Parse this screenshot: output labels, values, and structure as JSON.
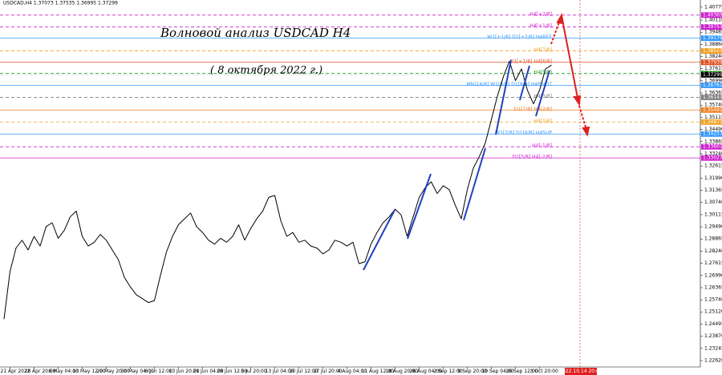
{
  "chart_data": {
    "type": "line",
    "title": "Волновой анализ USDCAD H4",
    "subtitle": "( 8 октября 2022 г.)",
    "symbol_info": "USDCAD,H4  1.37073 1.37535 1.36995 1.37299",
    "forecast_date": "2022.10.14 20:00",
    "last_price": 1.37299,
    "color": "#000000",
    "ylim": [
      1.2229,
      1.4114
    ],
    "yticks": [
      1.40775,
      {
        "value": 1.4011,
        "label": "1.40110"
      },
      1.39485,
      {
        "value": 1.3886,
        "label": "1.38860"
      },
      {
        "value": 1.3824,
        "label": "1.38240"
      },
      1.37615,
      {
        "value": 1.3699,
        "label": "1.36990"
      },
      1.36365,
      {
        "value": 1.3574,
        "label": "1.35740"
      },
      1.35115,
      {
        "value": 1.3449,
        "label": "1.34490"
      },
      1.33865,
      {
        "value": 1.3324,
        "label": "1.33240"
      },
      1.32615,
      {
        "value": 1.3199,
        "label": "1.31990"
      },
      1.31365,
      {
        "value": 1.3074,
        "label": "1.30740"
      },
      1.30115,
      {
        "value": 1.2949,
        "label": "1.29490"
      },
      1.28865,
      {
        "value": 1.2824,
        "label": "1.28240"
      },
      1.27615,
      {
        "value": 1.2699,
        "label": "1.26990"
      },
      1.26365,
      {
        "value": 1.2574,
        "label": "1.25740"
      },
      {
        "value": 1.2512,
        "label": "1.25120"
      },
      1.24495,
      {
        "value": 1.2387,
        "label": "1.23870"
      },
      1.23245,
      {
        "value": 1.2262,
        "label": "1.22620"
      }
    ],
    "categories": [
      null,
      "21 Apr 2022",
      null,
      null,
      null,
      "28 Apr 20:00",
      null,
      null,
      null,
      "6 May 04:00",
      null,
      null,
      null,
      "13 May 12:00",
      null,
      null,
      null,
      "20 May 20:00",
      null,
      null,
      null,
      "30 May 04:00",
      null,
      null,
      null,
      "6 Jun 12:00",
      null,
      null,
      null,
      "13 Jun 20:00",
      null,
      null,
      null,
      "21 Jun 04:00",
      null,
      null,
      null,
      "28 Jun 12:00",
      null,
      null,
      null,
      "5 Jul 20:00",
      null,
      null,
      null,
      "13 Jul 04:00",
      null,
      null,
      null,
      "20 Jul 12:00",
      null,
      null,
      null,
      "27 Jul 20:00",
      null,
      null,
      null,
      "4 Aug 04:00",
      null,
      null,
      null,
      "11 Aug 12:00",
      null,
      null,
      null,
      "18 Aug 20:00",
      null,
      null,
      null,
      "26 Aug 04:00",
      null,
      null,
      null,
      "2 Sep 12:00",
      null,
      null,
      null,
      "9 Sep 20:00",
      null,
      null,
      null,
      "19 Sep 04:00",
      null,
      null,
      null,
      "26 Sep 12:00",
      null,
      null,
      null,
      "3 Oct 20:00",
      null,
      null
    ],
    "values": [
      1.2475,
      1.272,
      1.284,
      1.288,
      1.283,
      1.29,
      1.285,
      1.295,
      1.297,
      1.289,
      1.293,
      1.3,
      1.303,
      1.29,
      1.285,
      1.287,
      1.291,
      1.288,
      1.283,
      1.278,
      1.269,
      1.264,
      1.26,
      1.258,
      1.256,
      1.257,
      1.27,
      1.282,
      1.29,
      1.296,
      1.299,
      1.302,
      1.295,
      1.292,
      1.288,
      1.286,
      1.289,
      1.287,
      1.29,
      1.296,
      1.288,
      1.294,
      1.299,
      1.303,
      1.31,
      1.311,
      1.298,
      1.29,
      1.292,
      1.287,
      1.288,
      1.285,
      1.284,
      1.281,
      1.283,
      1.288,
      1.287,
      1.285,
      1.287,
      1.276,
      1.277,
      1.286,
      1.292,
      1.297,
      1.3,
      1.304,
      1.301,
      1.29,
      1.3,
      1.31,
      1.315,
      1.318,
      1.312,
      1.316,
      1.314,
      1.306,
      1.299,
      1.314,
      1.325,
      1.331,
      1.338,
      1.35,
      1.362,
      1.372,
      1.38,
      1.37,
      1.376,
      1.365,
      1.358,
      1.365,
      1.376,
      1.378
    ],
    "levels": [
      {
        "label": "H4[+2/8]",
        "value": 1.40365,
        "color": "#d020d0",
        "dashed": true
      },
      {
        "label": "H4[+1/8]",
        "value": 1.39753,
        "color": "#d020d0",
        "dashed": true
      },
      {
        "label": "W1[+1/8] D1[+2/8] H4REE",
        "value": 1.39179,
        "color": "#3399ff",
        "dashed": false
      },
      {
        "label": "H4[7/8]",
        "value": 1.38523,
        "color": "#f0a020",
        "dashed": true
      },
      {
        "label": "D1[+1/8] H4[6/8]",
        "value": 1.37939,
        "color": "#e05020",
        "dashed": false
      },
      {
        "label": "H4[5/8]",
        "value": 1.37367,
        "color": "#20a020",
        "dashed": true
      },
      {
        "label": "MN1[4/8] W1[8/8] D1[8/8] H4PIVOT",
        "value": 1.36761,
        "color": "#3399ff",
        "dashed": false
      },
      {
        "label": "H4[3/8]",
        "value": 1.36143,
        "color": "#808080",
        "dashed": true
      },
      {
        "label": "D1[7/8] H4[2/8]",
        "value": 1.35491,
        "color": "#f08020",
        "dashed": false
      },
      {
        "label": "H4[1/8]",
        "value": 1.34873,
        "color": "#f0a020",
        "dashed": true
      },
      {
        "label": "W1[7/8] D1[6/8] H4SUP",
        "value": 1.34257,
        "color": "#3399ff",
        "dashed": false
      },
      {
        "label": "H4[-1/8]",
        "value": 1.33601,
        "color": "#d020d0",
        "dashed": true
      },
      {
        "label": "D1[5/8] H4[-2/8]",
        "value": 1.33027,
        "color": "#d020d0",
        "dashed": false
      }
    ]
  }
}
